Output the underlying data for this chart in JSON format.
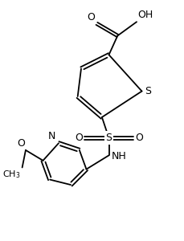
{
  "bg_color": "#ffffff",
  "bond_color": "#000000",
  "lw": 1.3,
  "fig_width": 2.29,
  "fig_height": 3.0,
  "dpi": 100,
  "xlim": [
    0,
    10
  ],
  "ylim": [
    0,
    13
  ]
}
